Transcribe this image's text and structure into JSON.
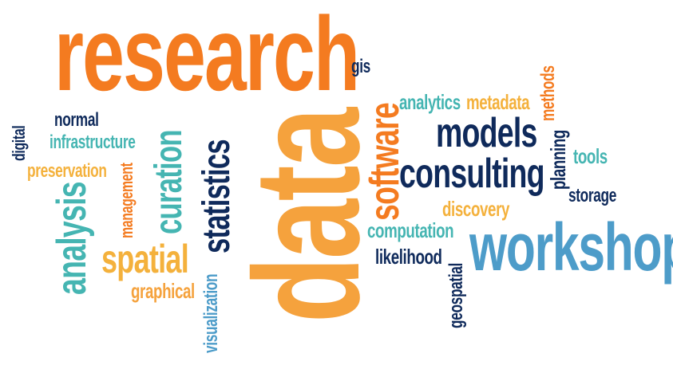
{
  "colors": {
    "orange": "#f47b20",
    "light_orange": "#f5a23d",
    "navy": "#0f2a5b",
    "teal": "#45b5b2",
    "blue": "#4d9cc9",
    "gold": "#f4b13c"
  },
  "words": {
    "research": "research",
    "data": "data",
    "workshop": "workshop",
    "consulting": "consulting",
    "models": "models",
    "software": "software",
    "statistics": "statistics",
    "curation": "curation",
    "spatial": "spatial",
    "analysis": "analysis",
    "management": "management",
    "graphical": "graphical",
    "visualization": "visualization",
    "digital": "digital",
    "normal": "normal",
    "infrastructure": "infrastructure",
    "preservation": "preservation",
    "gis": "gis",
    "analytics": "analytics",
    "metadata": "metadata",
    "methods": "methods",
    "planning": "planning",
    "tools": "tools",
    "storage": "storage",
    "discovery": "discovery",
    "computation": "computation",
    "likelihood": "likelihood",
    "geospatial": "geospatial"
  }
}
